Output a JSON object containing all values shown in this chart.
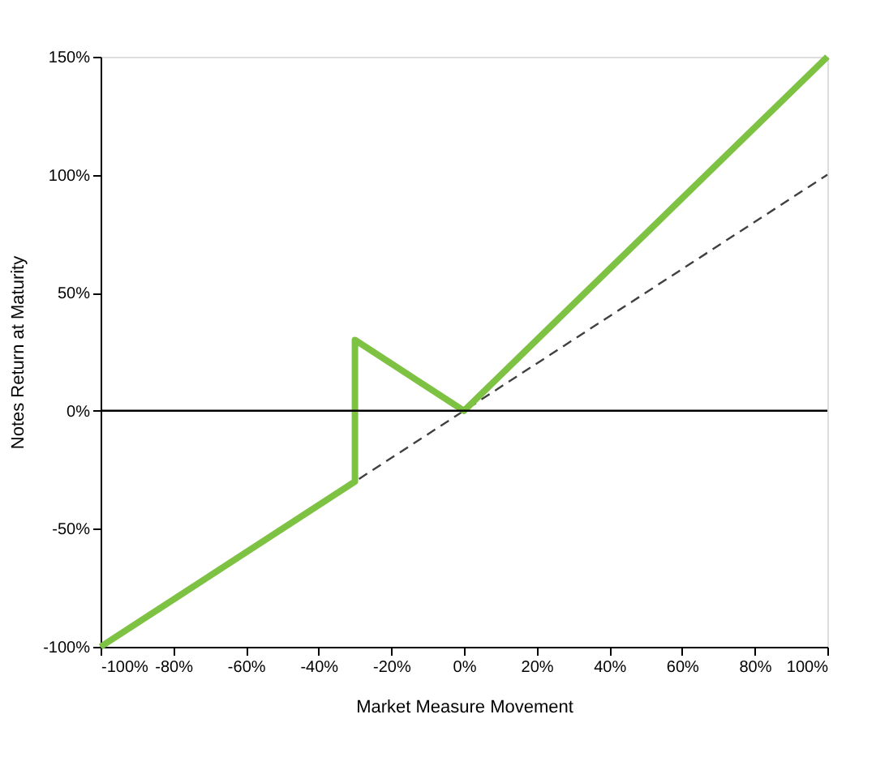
{
  "chart_data": {
    "type": "line",
    "xlabel": "Market Measure Movement",
    "ylabel": "Notes Return at Maturity",
    "series": [
      {
        "x": [
          -100,
          100
        ],
        "values": [
          -100,
          100
        ],
        "color": "#404040",
        "line_style": "dashed"
      },
      {
        "x": [
          -100,
          -30,
          -30,
          0,
          100
        ],
        "values": [
          -100,
          -30,
          30,
          0,
          150
        ],
        "color": "#7dc242",
        "line_style": "solid"
      }
    ],
    "xlim": [
      -100,
      100
    ],
    "ylim": [
      -100,
      150
    ],
    "xticks": [
      {
        "value": -100,
        "label": "-100%"
      },
      {
        "value": -80,
        "label": "-80%"
      },
      {
        "value": -60,
        "label": "-60%"
      },
      {
        "value": -40,
        "label": "-40%"
      },
      {
        "value": -20,
        "label": "-20%"
      },
      {
        "value": 0,
        "label": "0%"
      },
      {
        "value": 20,
        "label": "20%"
      },
      {
        "value": 40,
        "label": "40%"
      },
      {
        "value": 60,
        "label": "60%"
      },
      {
        "value": 80,
        "label": "80%"
      },
      {
        "value": 100,
        "label": "100%"
      }
    ],
    "yticks": [
      {
        "value": -100,
        "label": "-100%"
      },
      {
        "value": -50,
        "label": "-50%"
      },
      {
        "value": 0,
        "label": "0%"
      },
      {
        "value": 50,
        "label": "50%"
      },
      {
        "value": 100,
        "label": "100%"
      },
      {
        "value": 150,
        "label": "150%"
      }
    ],
    "ref_lines": [
      {
        "axis": "y",
        "value": 0,
        "color": "#000000",
        "line_style": "solid"
      }
    ],
    "grid": false,
    "marker": "none"
  }
}
